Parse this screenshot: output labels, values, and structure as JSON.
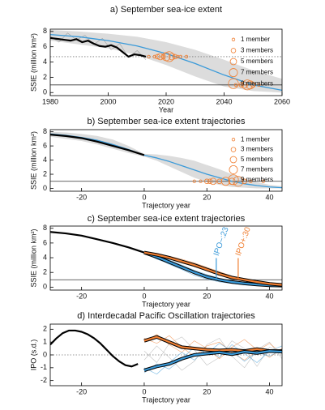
{
  "chart_data": [
    {
      "type": "line",
      "title": "a) September sea-ice extent",
      "xlabel": "Year",
      "ylabel": "SSIE (million km²)",
      "xlim": [
        1980,
        2060
      ],
      "xticks": [
        1980,
        2000,
        2020,
        2040,
        2060
      ],
      "ylim": [
        -0.4,
        8.3
      ],
      "yticks": [
        0,
        2,
        4,
        6,
        8
      ],
      "band": {
        "color": "#dcdcdc",
        "x": [
          1980,
          1990,
          2000,
          2010,
          2020,
          2030,
          2040,
          2050,
          2060
        ],
        "upper": [
          8.2,
          8.0,
          7.7,
          7.3,
          6.6,
          5.6,
          4.3,
          2.9,
          1.8
        ],
        "lower": [
          6.8,
          6.3,
          5.8,
          4.9,
          3.6,
          2.1,
          0.8,
          0.2,
          0.0
        ]
      },
      "hlines": [
        {
          "value": 4.7,
          "style": "dotted"
        },
        {
          "value": 1,
          "style": "solid"
        }
      ],
      "series": [
        {
          "kind": "line",
          "style": "thin",
          "color": "#888888",
          "x": [
            1980,
            1983,
            1986,
            1989,
            1992,
            1995,
            1998,
            2001,
            2004,
            2007,
            2010,
            2013
          ],
          "values": [
            7.4,
            6.6,
            7.8,
            6.9,
            7.5,
            6.3,
            7.1,
            5.6,
            6.4,
            4.6,
            5.5,
            4.3
          ]
        },
        {
          "kind": "line",
          "style": "normal",
          "color": "#3a9ad9",
          "x": [
            1980,
            1990,
            2000,
            2010,
            2020,
            2030,
            2040,
            2050,
            2060
          ],
          "values": [
            7.6,
            7.3,
            6.8,
            6.1,
            5.1,
            3.8,
            2.3,
            1.0,
            0.3
          ]
        },
        {
          "kind": "line",
          "style": "thick",
          "color": "#000000",
          "x": [
            1979,
            1981,
            1983,
            1985,
            1987,
            1989,
            1991,
            1993,
            1995,
            1997,
            1999,
            2001,
            2003,
            2005,
            2007,
            2009,
            2011,
            2013
          ],
          "values": [
            7.2,
            7.1,
            7.0,
            6.9,
            6.8,
            7.0,
            6.6,
            6.8,
            6.4,
            6.1,
            6.0,
            6.2,
            5.9,
            5.3,
            4.7,
            5.0,
            4.9,
            4.7
          ]
        },
        {
          "kind": "scatter",
          "color": "#f07f32",
          "x": [
            2014,
            2016,
            2017,
            2018,
            2019,
            2020,
            2021,
            2022,
            2023,
            2024,
            2025,
            2027
          ],
          "values": [
            4.7,
            4.7,
            4.7,
            4.7,
            4.7,
            4.7,
            4.7,
            4.7,
            4.7,
            4.7,
            4.7,
            4.7
          ],
          "members": [
            1,
            1,
            3,
            5,
            3,
            7,
            9,
            5,
            3,
            1,
            1,
            1
          ]
        },
        {
          "kind": "scatter",
          "color": "#f07f32",
          "x": [
            2044,
            2046,
            2047,
            2048,
            2049,
            2050,
            2052
          ],
          "values": [
            1,
            1,
            1,
            1,
            1,
            1,
            1
          ],
          "members": [
            1,
            3,
            5,
            9,
            7,
            3,
            1
          ]
        }
      ],
      "legend": {
        "corner": "upper right",
        "color": "#f07f32",
        "labels": [
          "1 member",
          "3 members",
          "5 members",
          "7 members",
          "9 members"
        ]
      }
    },
    {
      "type": "line",
      "title": "b) September sea-ice extent trajectories",
      "xlabel": "Trajectory year",
      "ylabel": "SSIE (million km²)",
      "xlim": [
        -30,
        44
      ],
      "xticks": [
        -20,
        0,
        20,
        40
      ],
      "ylim": [
        -0.4,
        8.3
      ],
      "yticks": [
        0,
        2,
        4,
        6,
        8
      ],
      "band": {
        "color": "#dcdcdc",
        "x": [
          -30,
          -25,
          -20,
          -15,
          -10,
          -5,
          0,
          4,
          8,
          12,
          16,
          20,
          24,
          28,
          32,
          36,
          40,
          44
        ],
        "upper": [
          8.0,
          7.9,
          7.7,
          7.4,
          6.9,
          6.0,
          4.9,
          4.8,
          4.6,
          4.3,
          3.9,
          3.3,
          2.7,
          2.0,
          1.4,
          0.9,
          0.5,
          0.3
        ],
        "lower": [
          7.3,
          7.0,
          6.7,
          6.2,
          5.6,
          5.0,
          4.5,
          3.9,
          3.1,
          2.3,
          1.5,
          0.9,
          0.5,
          0.2,
          0.1,
          0.0,
          0.0,
          0.0
        ]
      },
      "hlines": [
        {
          "value": 1,
          "style": "solid"
        }
      ],
      "series": [
        {
          "kind": "line",
          "style": "normal",
          "color": "#3a9ad9",
          "x": [
            -30,
            -25,
            -20,
            -15,
            -10,
            -5,
            0,
            4,
            8,
            12,
            16,
            20,
            24,
            28,
            32,
            36,
            40,
            44
          ],
          "values": [
            7.7,
            7.5,
            7.2,
            6.8,
            6.2,
            5.5,
            4.7,
            4.3,
            3.8,
            3.2,
            2.6,
            2.0,
            1.5,
            1.0,
            0.65,
            0.4,
            0.2,
            0.1
          ]
        },
        {
          "kind": "line",
          "style": "thick",
          "color": "#000000",
          "x": [
            -30,
            -25,
            -20,
            -15,
            -10,
            -5,
            0
          ],
          "values": [
            7.6,
            7.4,
            7.1,
            6.6,
            6.0,
            5.4,
            4.7
          ]
        },
        {
          "kind": "scatter",
          "color": "#f07f32",
          "x": [
            16,
            18,
            20,
            21,
            22,
            24,
            26,
            28,
            30,
            32,
            34,
            38
          ],
          "values": [
            1,
            1,
            1,
            1,
            1,
            1,
            1,
            1,
            1,
            1,
            1,
            1
          ],
          "members": [
            1,
            1,
            3,
            3,
            5,
            3,
            7,
            5,
            9,
            3,
            1,
            1
          ]
        }
      ],
      "legend": {
        "corner": "upper right",
        "color": "#f07f32",
        "labels": [
          "1 member",
          "3 members",
          "5 members",
          "7 members",
          "9 members"
        ]
      }
    },
    {
      "type": "line",
      "title": "c) September sea-ice extent trajectories",
      "xlabel": "Trajectory year",
      "ylabel": "SSIE (million km²)",
      "xlim": [
        -30,
        44
      ],
      "xticks": [
        -20,
        0,
        20,
        40
      ],
      "ylim": [
        -0.4,
        8.3
      ],
      "yticks": [
        0,
        2,
        4,
        6,
        8
      ],
      "hlines": [
        {
          "value": 1,
          "style": "solid"
        }
      ],
      "series": [
        {
          "kind": "line",
          "style": "thin",
          "color": "#3a9ad9",
          "x": [
            0,
            4,
            8,
            12,
            16,
            20,
            24,
            28,
            32,
            36,
            40,
            44
          ],
          "values": [
            4.7,
            4.0,
            3.1,
            2.4,
            1.6,
            1.1,
            0.7,
            0.5,
            0.3,
            0.2,
            0.1,
            0.1
          ]
        },
        {
          "kind": "line",
          "style": "thin",
          "color": "#3a9ad9",
          "x": [
            0,
            4,
            8,
            12,
            16,
            20,
            24,
            28,
            32,
            36,
            40,
            44
          ],
          "values": [
            4.7,
            4.3,
            3.7,
            3.0,
            2.3,
            1.7,
            1.2,
            0.8,
            0.6,
            0.4,
            0.3,
            0.2
          ]
        },
        {
          "kind": "line",
          "style": "thin",
          "color": "#3a9ad9",
          "x": [
            0,
            4,
            8,
            12,
            16,
            20,
            24,
            28,
            32,
            36,
            40,
            44
          ],
          "values": [
            4.7,
            3.8,
            3.2,
            2.5,
            1.9,
            1.2,
            0.9,
            0.6,
            0.4,
            0.2,
            0.2,
            0.1
          ]
        },
        {
          "kind": "line",
          "style": "thin",
          "color": "#f07f32",
          "x": [
            0,
            4,
            8,
            12,
            16,
            20,
            24,
            28,
            32,
            36,
            40,
            44
          ],
          "values": [
            4.7,
            4.6,
            4.2,
            3.8,
            3.3,
            2.7,
            2.1,
            1.5,
            1.1,
            0.8,
            0.5,
            0.3
          ]
        },
        {
          "kind": "line",
          "style": "thin",
          "color": "#f07f32",
          "x": [
            0,
            4,
            8,
            12,
            16,
            20,
            24,
            28,
            32,
            36,
            40,
            44
          ],
          "values": [
            4.7,
            4.3,
            3.9,
            3.3,
            2.8,
            2.2,
            1.6,
            1.2,
            0.9,
            0.6,
            0.4,
            0.2
          ]
        },
        {
          "kind": "line",
          "style": "thin",
          "color": "#f07f32",
          "x": [
            0,
            4,
            8,
            12,
            16,
            20,
            24,
            28,
            32,
            36,
            40,
            44
          ],
          "values": [
            4.7,
            4.5,
            4.1,
            3.6,
            3.1,
            2.6,
            2.0,
            1.4,
            1.0,
            0.7,
            0.5,
            0.4
          ]
        },
        {
          "kind": "line",
          "style": "thick",
          "color": "#000000",
          "x": [
            -30,
            -25,
            -20,
            -15,
            -10,
            -5,
            0
          ],
          "values": [
            7.5,
            7.3,
            7.0,
            6.5,
            6.0,
            5.4,
            4.7
          ]
        },
        {
          "kind": "line",
          "style": "thick",
          "outline": true,
          "color": "#3a9ad9",
          "x": [
            0,
            4,
            8,
            12,
            16,
            20,
            24,
            28,
            32,
            36,
            40,
            44
          ],
          "values": [
            4.7,
            4.1,
            3.4,
            2.7,
            2.0,
            1.4,
            1.0,
            0.7,
            0.5,
            0.35,
            0.25,
            0.2
          ]
        },
        {
          "kind": "line",
          "style": "thick",
          "outline": true,
          "color": "#f07f32",
          "x": [
            0,
            4,
            8,
            12,
            16,
            20,
            24,
            28,
            32,
            36,
            40,
            44
          ],
          "values": [
            4.7,
            4.4,
            4.0,
            3.5,
            3.0,
            2.4,
            1.8,
            1.3,
            1.0,
            0.7,
            0.45,
            0.3
          ]
        }
      ],
      "annotations": [
        {
          "text": "IPO−:23",
          "x": 23,
          "color": "#3a9ad9"
        },
        {
          "text": "IPO+:30",
          "x": 30,
          "color": "#f07f32"
        }
      ]
    },
    {
      "type": "line",
      "title": "d) Interdecadal Pacific Oscillation trajectories",
      "xlabel": "Trajectory year",
      "ylabel": "IPO (s.d.)",
      "xlim": [
        -30,
        44
      ],
      "xticks": [
        -20,
        0,
        20,
        40
      ],
      "ylim": [
        -2.4,
        2.4
      ],
      "yticks": [
        -2,
        -1,
        0,
        1,
        2
      ],
      "hlines": [
        {
          "value": 0,
          "style": "dotted"
        }
      ],
      "series": [
        {
          "kind": "line",
          "style": "thin",
          "color": "#aaaaaa",
          "x": [
            0,
            4,
            8,
            12,
            16,
            20,
            24,
            28,
            32,
            36,
            40,
            44
          ],
          "values": [
            0.3,
            -0.6,
            0.9,
            1.4,
            0.4,
            -0.8,
            -0.2,
            1.1,
            0.5,
            -0.9,
            0.6,
            0.2
          ]
        },
        {
          "kind": "line",
          "style": "thin",
          "color": "#aaaaaa",
          "x": [
            0,
            4,
            8,
            12,
            16,
            20,
            24,
            28,
            32,
            36,
            40,
            44
          ],
          "values": [
            -0.4,
            0.7,
            -0.2,
            -1.2,
            -0.5,
            0.8,
            1.3,
            -0.1,
            -1.0,
            0.4,
            1.0,
            -0.3
          ]
        },
        {
          "kind": "line",
          "style": "thin",
          "color": "#f07f32",
          "x": [
            0,
            4,
            8,
            12,
            16,
            20,
            24,
            28,
            32,
            36,
            40,
            44
          ],
          "values": [
            1.0,
            1.6,
            0.8,
            0.2,
            1.1,
            0.5,
            -0.3,
            0.6,
            1.2,
            0.4,
            -0.2,
            0.5
          ]
        },
        {
          "kind": "line",
          "style": "thin",
          "color": "#f07f32",
          "x": [
            0,
            4,
            8,
            12,
            16,
            20,
            24,
            28,
            32,
            36,
            40,
            44
          ],
          "values": [
            1.3,
            0.9,
            1.5,
            0.6,
            -0.1,
            0.7,
            1.0,
            0.2,
            -0.4,
            0.3,
            0.9,
            0.1
          ]
        },
        {
          "kind": "line",
          "style": "thin",
          "color": "#3a9ad9",
          "x": [
            0,
            4,
            8,
            12,
            16,
            20,
            24,
            28,
            32,
            36,
            40,
            44
          ],
          "values": [
            -1.0,
            -1.5,
            -0.6,
            0.2,
            -0.4,
            0.5,
            -0.2,
            0.8,
            0.1,
            -0.6,
            0.3,
            0.7
          ]
        },
        {
          "kind": "line",
          "style": "thin",
          "color": "#3a9ad9",
          "x": [
            0,
            4,
            8,
            12,
            16,
            20,
            24,
            28,
            32,
            36,
            40,
            44
          ],
          "values": [
            -1.4,
            -0.7,
            -1.1,
            -0.3,
            0.6,
            0.1,
            0.9,
            0.3,
            -0.5,
            0.2,
            -0.1,
            0.4
          ]
        },
        {
          "kind": "line",
          "style": "thick",
          "color": "#000000",
          "x": [
            -30,
            -28,
            -26,
            -24,
            -22,
            -20,
            -18,
            -16,
            -14,
            -12,
            -10,
            -8,
            -6,
            -4,
            -2
          ],
          "values": [
            0.8,
            1.3,
            1.7,
            1.9,
            1.9,
            1.8,
            1.6,
            1.3,
            0.9,
            0.4,
            -0.1,
            -0.5,
            -0.8,
            -0.9,
            -0.7
          ]
        },
        {
          "kind": "line",
          "style": "thick",
          "outline": true,
          "color": "#f07f32",
          "x": [
            0,
            4,
            8,
            12,
            16,
            20,
            24,
            28,
            32,
            36,
            40,
            44
          ],
          "values": [
            1.1,
            1.4,
            1.0,
            0.6,
            0.5,
            0.4,
            0.35,
            0.4,
            0.3,
            0.45,
            0.3,
            0.3
          ]
        },
        {
          "kind": "line",
          "style": "thick",
          "outline": true,
          "color": "#3a9ad9",
          "x": [
            0,
            4,
            8,
            12,
            16,
            20,
            24,
            28,
            32,
            36,
            40,
            44
          ],
          "values": [
            -1.2,
            -0.9,
            -0.7,
            -0.3,
            0.0,
            0.1,
            0.2,
            0.05,
            0.25,
            0.15,
            0.3,
            0.25
          ]
        }
      ]
    }
  ]
}
